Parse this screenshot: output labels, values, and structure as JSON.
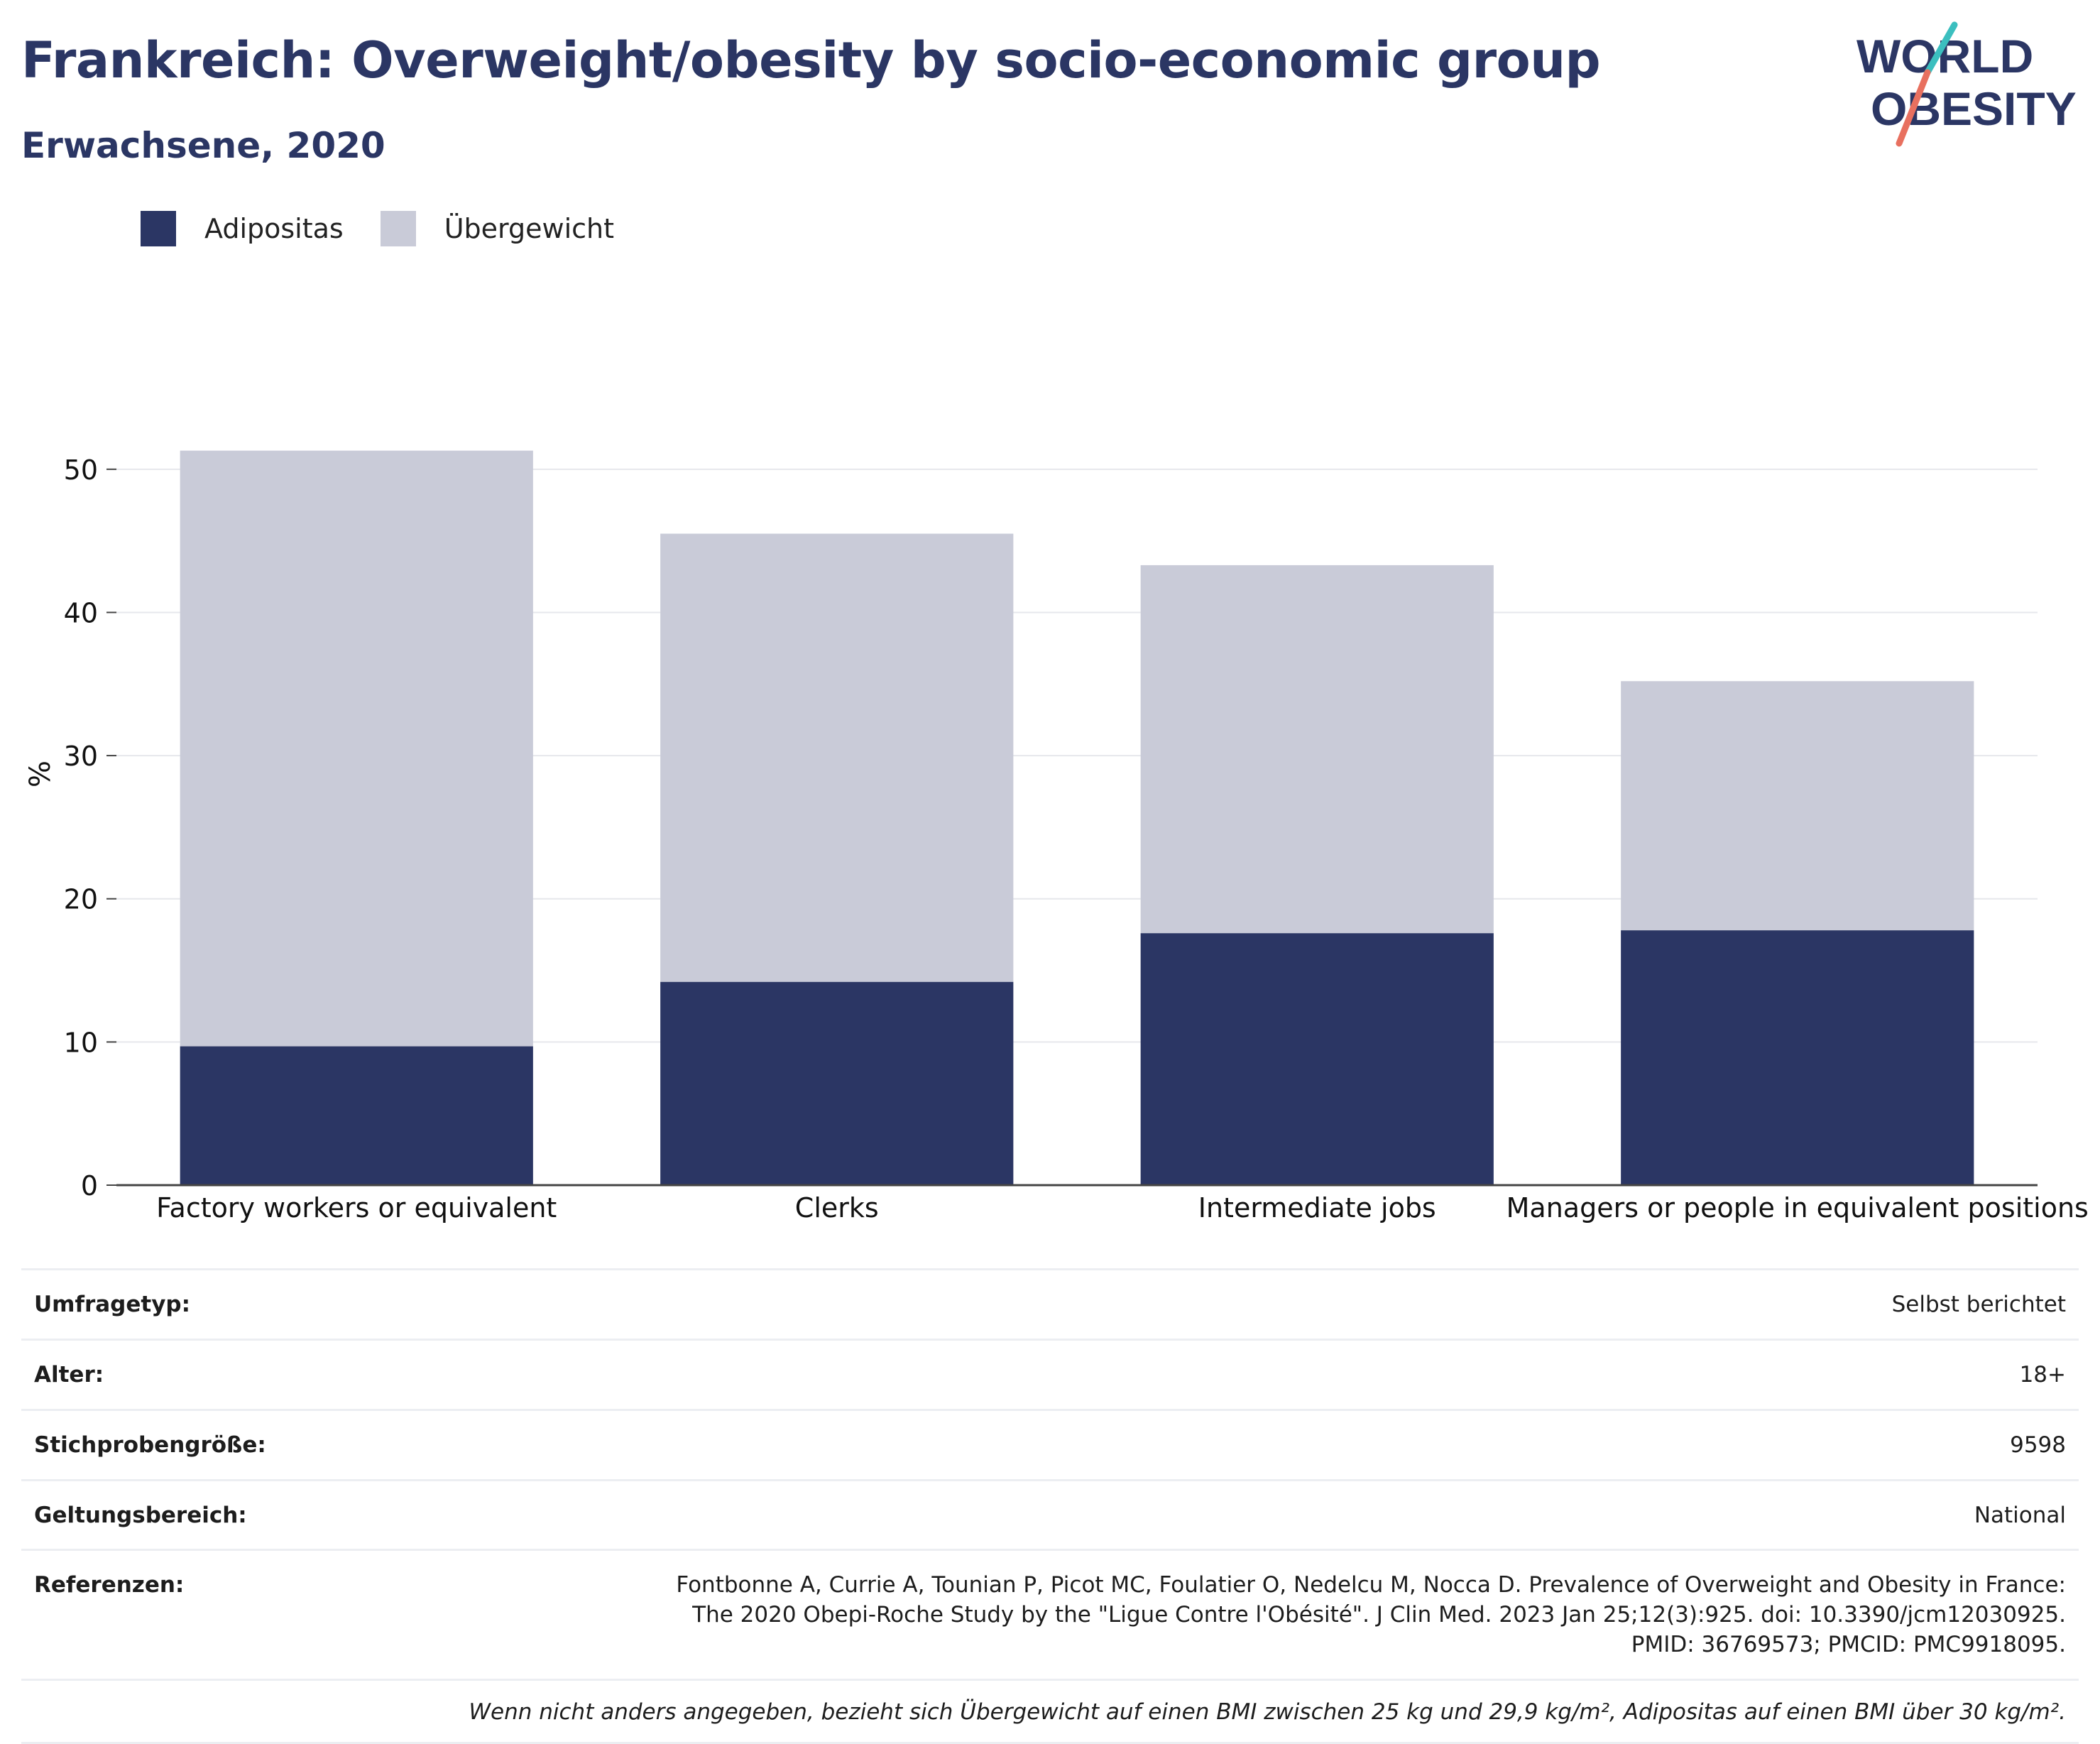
{
  "header": {
    "title": "Frankreich: Overweight/obesity by socio-economic group",
    "subtitle": "Erwachsene, 2020"
  },
  "logo": {
    "line1": "WORLD",
    "line2": "OBESITY",
    "slash_colors": [
      "#3bbfbf",
      "#e8705f"
    ]
  },
  "legend": {
    "items": [
      {
        "label": "Adipositas",
        "color": "#2b3664"
      },
      {
        "label": "Übergewicht",
        "color": "#c9cbd8"
      }
    ]
  },
  "chart_data": {
    "type": "bar",
    "stacked": true,
    "categories": [
      "Factory workers or equivalent",
      "Clerks",
      "Intermediate jobs",
      "Managers or people in equivalent positions"
    ],
    "series": [
      {
        "name": "Adipositas",
        "color": "#2b3664",
        "values": [
          9.7,
          14.2,
          17.6,
          17.8
        ]
      },
      {
        "name": "Übergewicht",
        "color": "#c9cbd8",
        "values": [
          41.6,
          31.3,
          25.7,
          17.4
        ]
      }
    ],
    "ylabel": "%",
    "ylim": [
      0,
      55
    ],
    "yticks": [
      0,
      10,
      20,
      30,
      40,
      50
    ],
    "grid": true
  },
  "meta": {
    "rows": [
      {
        "key": "Umfragetyp:",
        "value": "Selbst berichtet"
      },
      {
        "key": "Alter:",
        "value": "18+"
      },
      {
        "key": "Stichprobengröße:",
        "value": "9598"
      },
      {
        "key": "Geltungsbereich:",
        "value": "National"
      }
    ],
    "references": {
      "key": "Referenzen:",
      "value": "Fontbonne A, Currie A, Tounian P, Picot MC, Foulatier O, Nedelcu M, Nocca D. Prevalence of Overweight and Obesity in France: The 2020 Obepi-Roche Study by the \"Ligue Contre l'Obésité\". J Clin Med. 2023 Jan 25;12(3):925. doi: 10.3390/jcm12030925. PMID: 36769573; PMCID: PMC9918095."
    },
    "note": "Wenn nicht anders angegeben, bezieht sich Übergewicht auf einen BMI zwischen 25 kg und 29,9 kg/m², Adipositas auf einen BMI über 30 kg/m²."
  }
}
